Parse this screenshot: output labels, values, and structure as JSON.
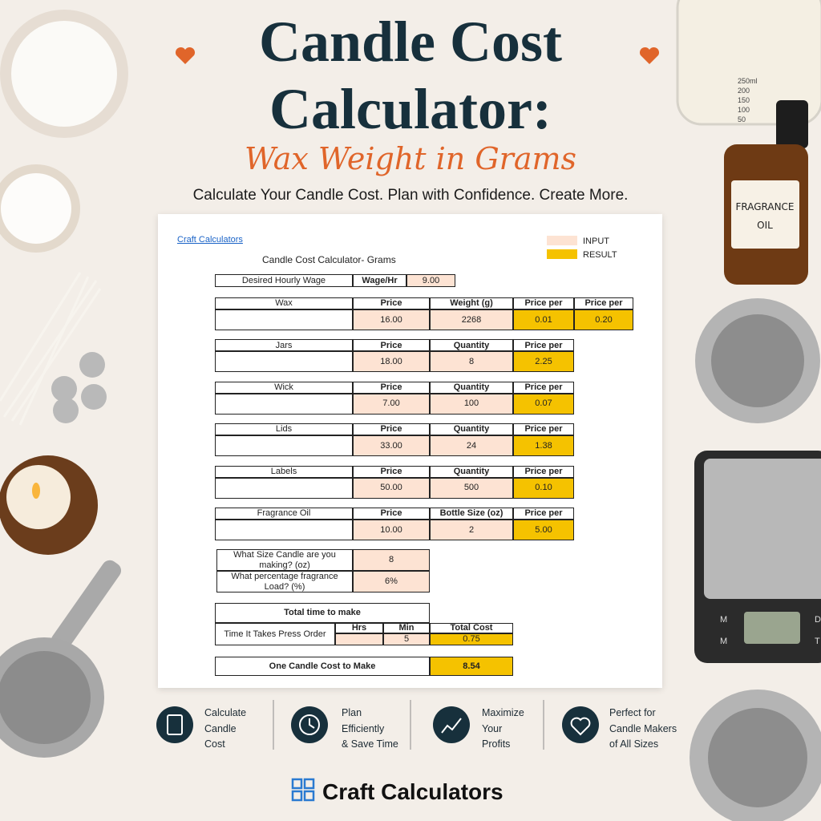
{
  "header": {
    "title_line1": "Candle Cost",
    "title_line2": "Calculator:",
    "subtitle": "Wax Weight in Grams",
    "tagline": "Calculate Your Candle Cost. Plan with Confidence. Create More."
  },
  "decor": {
    "fragrance_label": [
      "FRAGRANCE",
      "OIL"
    ],
    "beaker_marks": [
      "250ml",
      "200",
      "150",
      "100",
      "50"
    ],
    "scale_buttons": [
      "M",
      "M",
      "D",
      "T"
    ]
  },
  "sheet": {
    "link": "Craft Calculators",
    "title": "Candle Cost Calculator- Grams",
    "legend": [
      "INPUT",
      "RESULT"
    ],
    "wage": {
      "label": "Desired Hourly Wage",
      "header": "Wage/Hr",
      "value": "9.00"
    },
    "items": [
      {
        "name": "Wax",
        "columns": [
          "Price",
          "Weight (g)",
          "Price per",
          "Price per"
        ],
        "values": [
          "16.00",
          "2268",
          "0.01",
          "0.20"
        ]
      },
      {
        "name": "Jars",
        "columns": [
          "Price",
          "Quantity",
          "Price per"
        ],
        "values": [
          "18.00",
          "8",
          "2.25"
        ]
      },
      {
        "name": "Wick",
        "columns": [
          "Price",
          "Quantity",
          "Price per"
        ],
        "values": [
          "7.00",
          "100",
          "0.07"
        ]
      },
      {
        "name": "Lids",
        "columns": [
          "Price",
          "Quantity",
          "Price per"
        ],
        "values": [
          "33.00",
          "24",
          "1.38"
        ]
      },
      {
        "name": "Labels",
        "columns": [
          "Price",
          "Quantity",
          "Price per"
        ],
        "values": [
          "50.00",
          "500",
          "0.10"
        ]
      },
      {
        "name": "Fragrance Oil",
        "columns": [
          "Price",
          "Bottle Size (oz)",
          "Price per"
        ],
        "values": [
          "10.00",
          "2",
          "5.00"
        ]
      }
    ],
    "questions": [
      {
        "label": "What Size Candle are you making? (oz)",
        "value": "8"
      },
      {
        "label": "What percentage fragrance Load? (%)",
        "value": "6%"
      }
    ],
    "time": {
      "title": "Total time to make",
      "label": "Time It Takes Press Order",
      "columns": [
        "Hrs",
        "Min",
        "Total Cost"
      ],
      "values": [
        null,
        "5",
        "0.75"
      ]
    },
    "total": {
      "label": "One Candle Cost to Make",
      "value": "8.54"
    }
  },
  "features": [
    {
      "lines": [
        "Calculate",
        "Candle",
        "Cost"
      ]
    },
    {
      "lines": [
        "Plan",
        "Efficiently",
        "& Save Time"
      ]
    },
    {
      "lines": [
        "Maximize",
        "Your",
        "Profits"
      ]
    },
    {
      "lines": [
        "Perfect for",
        "Candle Makers",
        "of All Sizes"
      ]
    }
  ],
  "footer": {
    "brand": "Craft Calculators"
  }
}
